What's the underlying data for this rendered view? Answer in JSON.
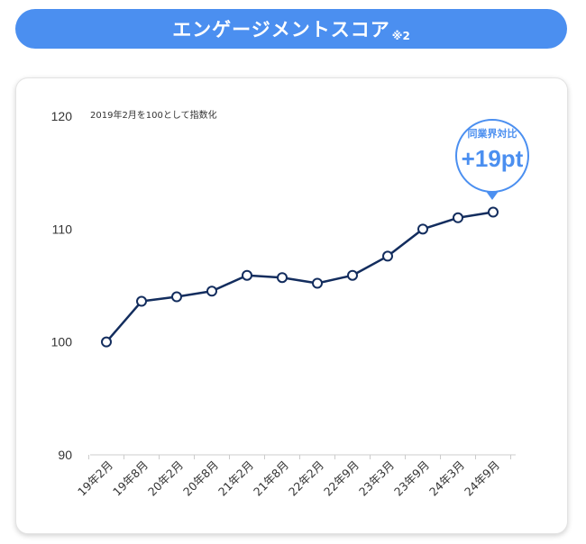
{
  "header": {
    "title": "エンゲージメントスコア",
    "note": "※2"
  },
  "chart_note": "2019年2月を100として指数化",
  "callout": {
    "label": "同業界対比",
    "value": "+19pt"
  },
  "colors": {
    "banner": "#4b8ff0",
    "line": "#132d5e",
    "callout": "#4b8ff0"
  },
  "chart_data": {
    "type": "line",
    "categories": [
      "19年2月",
      "19年8月",
      "20年2月",
      "20年8月",
      "21年2月",
      "21年8月",
      "22年2月",
      "22年9月",
      "23年3月",
      "23年9月",
      "24年3月",
      "24年9月"
    ],
    "values": [
      100,
      103.6,
      104.0,
      104.5,
      105.9,
      105.7,
      105.2,
      105.9,
      107.6,
      110.0,
      111.0,
      111.5
    ],
    "yticks": [
      90,
      100,
      110,
      120
    ],
    "ylim": [
      90,
      120
    ],
    "grid": false
  }
}
